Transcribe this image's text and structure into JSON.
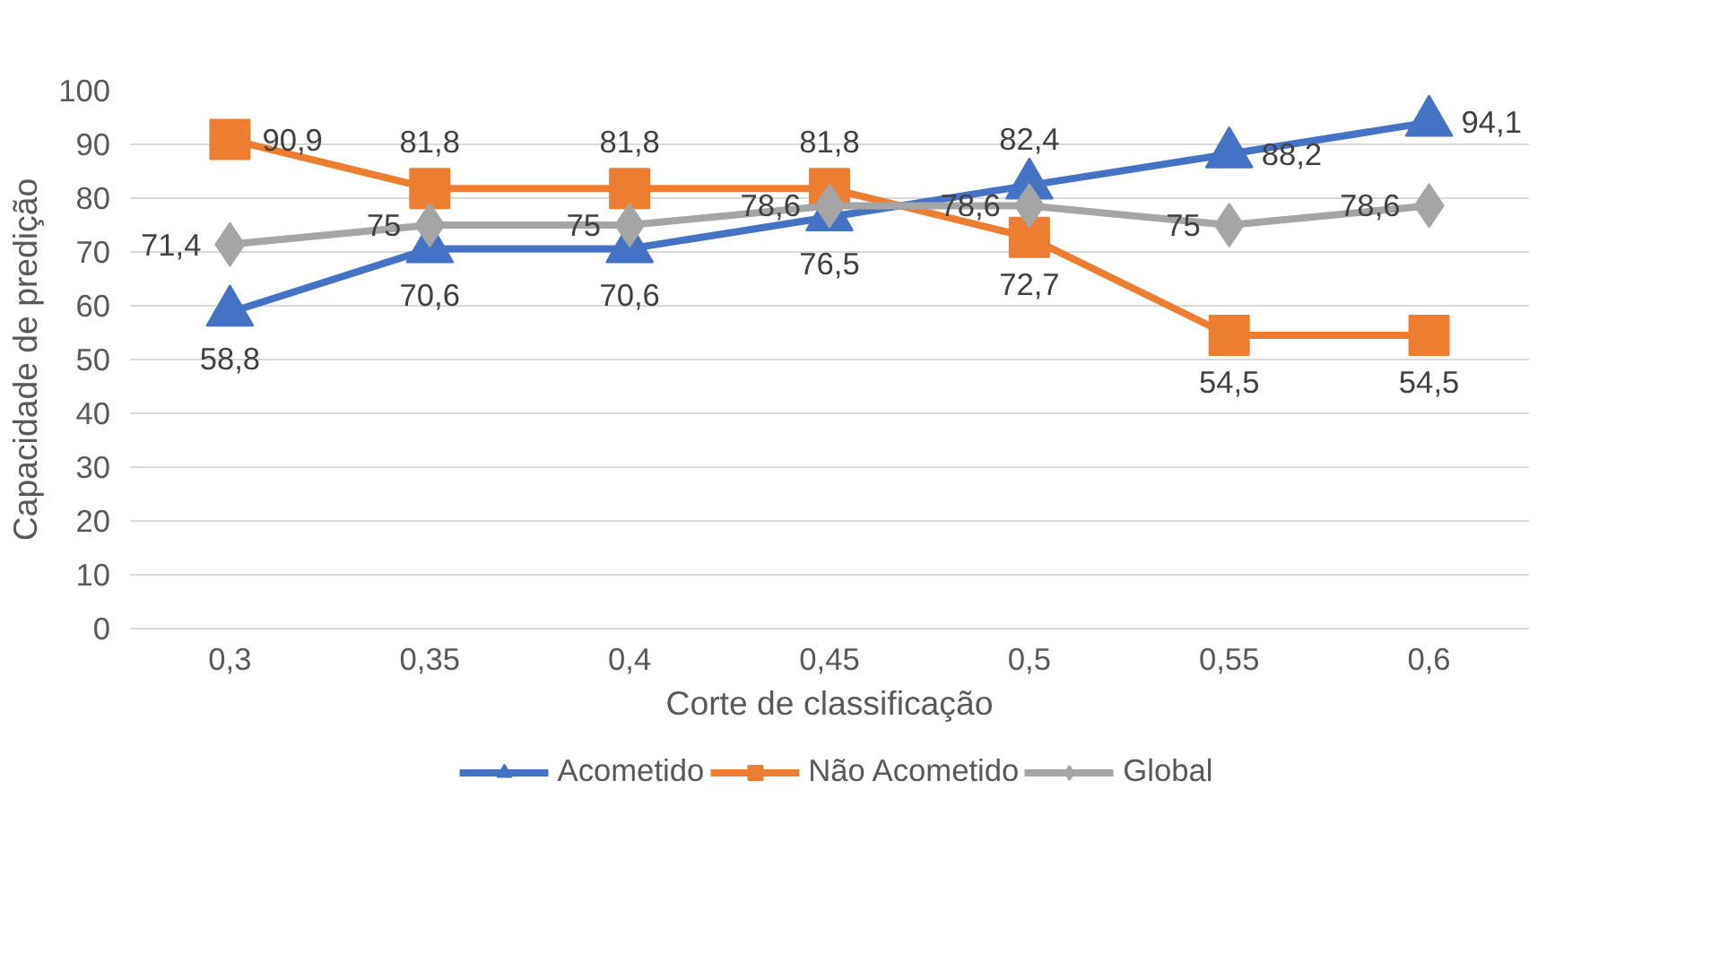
{
  "chart_data": {
    "type": "line",
    "xlabel": "Corte de classificação",
    "ylabel": "Capacidade de predição",
    "categories": [
      "0,3",
      "0,35",
      "0,4",
      "0,45",
      "0,5",
      "0,55",
      "0,6"
    ],
    "ylim": [
      0,
      100
    ],
    "yticks": [
      0,
      10,
      20,
      30,
      40,
      50,
      60,
      70,
      80,
      90,
      100
    ],
    "grid": "y",
    "legend": "bottom",
    "series": [
      {
        "name": "Acometido",
        "color": "#4472c4",
        "marker": "triangle",
        "values": [
          58.8,
          70.6,
          70.6,
          76.5,
          82.4,
          88.2,
          94.1
        ],
        "value_labels": [
          "58,8",
          "70,6",
          "70,6",
          "76,5",
          "82,4",
          "88,2",
          "94,1"
        ]
      },
      {
        "name": "Não Acometido",
        "color": "#ed7d31",
        "marker": "square",
        "values": [
          90.9,
          81.8,
          81.8,
          81.8,
          72.7,
          54.5,
          54.5
        ],
        "value_labels": [
          "90,9",
          "81,8",
          "81,8",
          "81,8",
          "72,7",
          "54,5",
          "54,5"
        ]
      },
      {
        "name": "Global",
        "color": "#a5a5a5",
        "marker": "diamond",
        "values": [
          71.4,
          75,
          75,
          78.6,
          78.6,
          75,
          78.6
        ],
        "value_labels": [
          "71,4",
          "75",
          "75",
          "78,6",
          "78,6",
          "75",
          "78,6"
        ]
      }
    ]
  }
}
